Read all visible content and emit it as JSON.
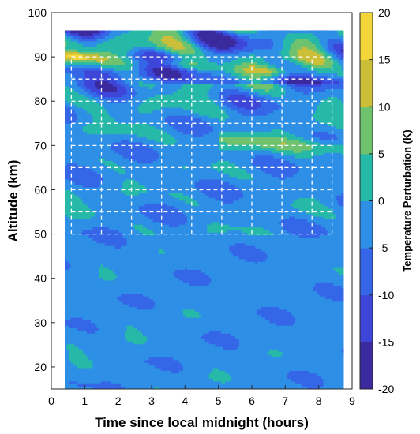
{
  "chart_data": {
    "type": "heatmap",
    "xlabel": "Time since local midnight (hours)",
    "ylabel": "Altitude (km)",
    "colorbar_label": "Temperature Perturbation (K)",
    "xlim": [
      0,
      9
    ],
    "ylim": [
      15,
      100
    ],
    "clim": [
      -20,
      20
    ],
    "x_ticks": [
      0,
      1,
      2,
      3,
      4,
      5,
      6,
      7,
      8,
      9
    ],
    "y_ticks": [
      20,
      30,
      40,
      50,
      60,
      70,
      80,
      90,
      100
    ],
    "colorbar_ticks": [
      20,
      15,
      10,
      5,
      0,
      -5,
      -10,
      -15,
      -20
    ],
    "data_coverage": {
      "time_range": [
        0.4,
        8.75
      ],
      "altitude_range": [
        15,
        96
      ]
    },
    "contour_levels": [
      -20,
      -15,
      -10,
      -5,
      0,
      5,
      10,
      15,
      20
    ],
    "colors": {
      "level_-20": "#3a2a9e",
      "level_-15": "#3d46d8",
      "level_-10": "#3566e8",
      "level_-5": "#2e8fe6",
      "level_0": "#27b9a8",
      "level_5": "#6fc26e",
      "level_10": "#cbbf3a",
      "level_15": "#f3d63a",
      "level_20": "#f7f218"
    },
    "dashed_grid_box": {
      "time_range": [
        0.6,
        8.4
      ],
      "altitude_range": [
        50,
        90
      ],
      "time_lines": [
        0.6,
        1.5,
        2.4,
        3.3,
        4.2,
        5.1,
        6.0,
        6.9,
        7.8,
        8.4
      ],
      "altitude_lines": [
        50,
        55,
        60,
        65,
        70,
        75,
        80,
        85,
        90
      ]
    },
    "grid": false
  }
}
